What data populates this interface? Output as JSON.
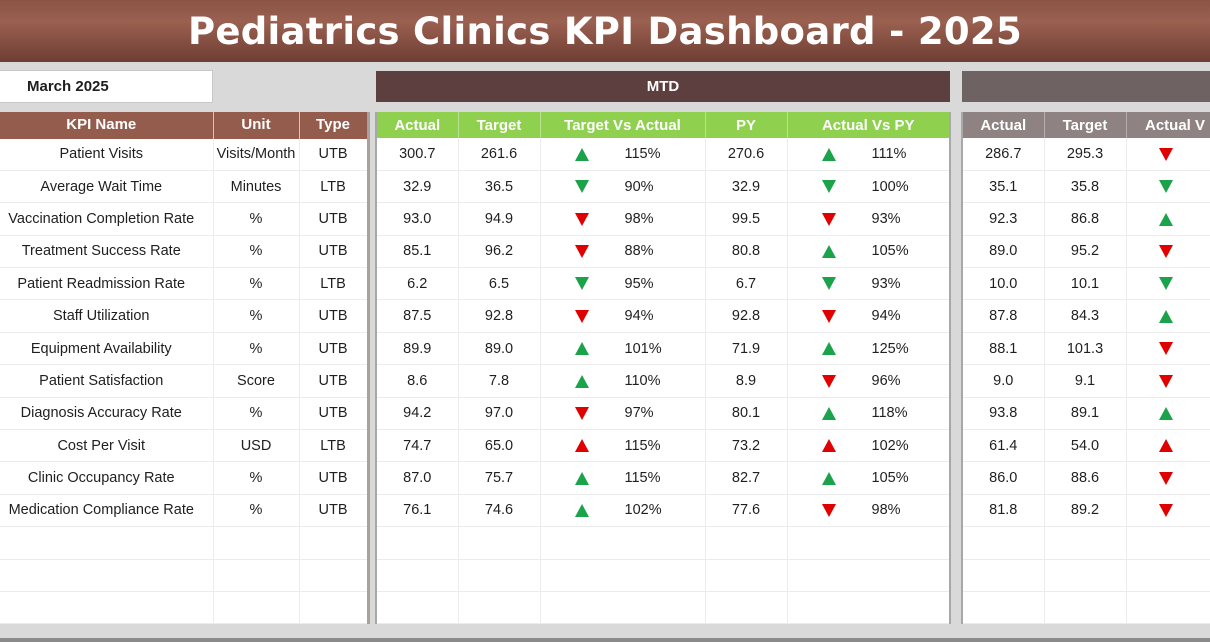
{
  "header": {
    "title": "Pediatrics Clinics KPI Dashboard - 2025"
  },
  "selector": {
    "month": "March 2025"
  },
  "sections": {
    "mtd": "MTD",
    "ytd": ""
  },
  "colors": {
    "good": "#1aa34a",
    "bad": "#e00000",
    "title_bg": "#8b5446",
    "mtd_header": "#5e3f3f",
    "mtd_cols": "#8fd14f",
    "ytd_header": "#6e6263",
    "ytd_cols": "#8e8282"
  },
  "kpi_columns": [
    "KPI Name",
    "Unit",
    "Type"
  ],
  "mtd_columns": [
    "Actual",
    "Target",
    "Target Vs Actual",
    "PY",
    "Actual Vs PY"
  ],
  "ytd_columns": [
    "Actual",
    "Target",
    "Actual V"
  ],
  "rows": [
    {
      "name": "Patient Visits",
      "unit": "Visits/Month",
      "type": "UTB",
      "mtd": {
        "actual": "300.7",
        "target": "261.6",
        "tva_dir": "up",
        "tva_status": "good",
        "tva": "115%",
        "py": "270.6",
        "avp_dir": "up",
        "avp_status": "good",
        "avp": "111%"
      },
      "ytd": {
        "actual": "286.7",
        "target": "295.3",
        "dir": "down",
        "status": "bad"
      }
    },
    {
      "name": "Average Wait Time",
      "unit": "Minutes",
      "type": "LTB",
      "mtd": {
        "actual": "32.9",
        "target": "36.5",
        "tva_dir": "down",
        "tva_status": "good",
        "tva": "90%",
        "py": "32.9",
        "avp_dir": "down",
        "avp_status": "good",
        "avp": "100%"
      },
      "ytd": {
        "actual": "35.1",
        "target": "35.8",
        "dir": "down",
        "status": "good"
      }
    },
    {
      "name": "Vaccination Completion Rate",
      "unit": "%",
      "type": "UTB",
      "mtd": {
        "actual": "93.0",
        "target": "94.9",
        "tva_dir": "down",
        "tva_status": "bad",
        "tva": "98%",
        "py": "99.5",
        "avp_dir": "down",
        "avp_status": "bad",
        "avp": "93%"
      },
      "ytd": {
        "actual": "92.3",
        "target": "86.8",
        "dir": "up",
        "status": "good"
      }
    },
    {
      "name": "Treatment Success Rate",
      "unit": "%",
      "type": "UTB",
      "mtd": {
        "actual": "85.1",
        "target": "96.2",
        "tva_dir": "down",
        "tva_status": "bad",
        "tva": "88%",
        "py": "80.8",
        "avp_dir": "up",
        "avp_status": "good",
        "avp": "105%"
      },
      "ytd": {
        "actual": "89.0",
        "target": "95.2",
        "dir": "down",
        "status": "bad"
      }
    },
    {
      "name": "Patient Readmission Rate",
      "unit": "%",
      "type": "LTB",
      "mtd": {
        "actual": "6.2",
        "target": "6.5",
        "tva_dir": "down",
        "tva_status": "good",
        "tva": "95%",
        "py": "6.7",
        "avp_dir": "down",
        "avp_status": "good",
        "avp": "93%"
      },
      "ytd": {
        "actual": "10.0",
        "target": "10.1",
        "dir": "down",
        "status": "good"
      }
    },
    {
      "name": "Staff Utilization",
      "unit": "%",
      "type": "UTB",
      "mtd": {
        "actual": "87.5",
        "target": "92.8",
        "tva_dir": "down",
        "tva_status": "bad",
        "tva": "94%",
        "py": "92.8",
        "avp_dir": "down",
        "avp_status": "bad",
        "avp": "94%"
      },
      "ytd": {
        "actual": "87.8",
        "target": "84.3",
        "dir": "up",
        "status": "good"
      }
    },
    {
      "name": "Equipment Availability",
      "unit": "%",
      "type": "UTB",
      "mtd": {
        "actual": "89.9",
        "target": "89.0",
        "tva_dir": "up",
        "tva_status": "good",
        "tva": "101%",
        "py": "71.9",
        "avp_dir": "up",
        "avp_status": "good",
        "avp": "125%"
      },
      "ytd": {
        "actual": "88.1",
        "target": "101.3",
        "dir": "down",
        "status": "bad"
      }
    },
    {
      "name": "Patient Satisfaction",
      "unit": "Score",
      "type": "UTB",
      "mtd": {
        "actual": "8.6",
        "target": "7.8",
        "tva_dir": "up",
        "tva_status": "good",
        "tva": "110%",
        "py": "8.9",
        "avp_dir": "down",
        "avp_status": "bad",
        "avp": "96%"
      },
      "ytd": {
        "actual": "9.0",
        "target": "9.1",
        "dir": "down",
        "status": "bad"
      }
    },
    {
      "name": "Diagnosis Accuracy Rate",
      "unit": "%",
      "type": "UTB",
      "mtd": {
        "actual": "94.2",
        "target": "97.0",
        "tva_dir": "down",
        "tva_status": "bad",
        "tva": "97%",
        "py": "80.1",
        "avp_dir": "up",
        "avp_status": "good",
        "avp": "118%"
      },
      "ytd": {
        "actual": "93.8",
        "target": "89.1",
        "dir": "up",
        "status": "good"
      }
    },
    {
      "name": "Cost Per Visit",
      "unit": "USD",
      "type": "LTB",
      "mtd": {
        "actual": "74.7",
        "target": "65.0",
        "tva_dir": "up",
        "tva_status": "bad",
        "tva": "115%",
        "py": "73.2",
        "avp_dir": "up",
        "avp_status": "bad",
        "avp": "102%"
      },
      "ytd": {
        "actual": "61.4",
        "target": "54.0",
        "dir": "up",
        "status": "bad"
      }
    },
    {
      "name": "Clinic Occupancy Rate",
      "unit": "%",
      "type": "UTB",
      "mtd": {
        "actual": "87.0",
        "target": "75.7",
        "tva_dir": "up",
        "tva_status": "good",
        "tva": "115%",
        "py": "82.7",
        "avp_dir": "up",
        "avp_status": "good",
        "avp": "105%"
      },
      "ytd": {
        "actual": "86.0",
        "target": "88.6",
        "dir": "down",
        "status": "bad"
      }
    },
    {
      "name": "Medication Compliance Rate",
      "unit": "%",
      "type": "UTB",
      "mtd": {
        "actual": "76.1",
        "target": "74.6",
        "tva_dir": "up",
        "tva_status": "good",
        "tva": "102%",
        "py": "77.6",
        "avp_dir": "down",
        "avp_status": "bad",
        "avp": "98%"
      },
      "ytd": {
        "actual": "81.8",
        "target": "89.2",
        "dir": "down",
        "status": "bad"
      }
    }
  ]
}
